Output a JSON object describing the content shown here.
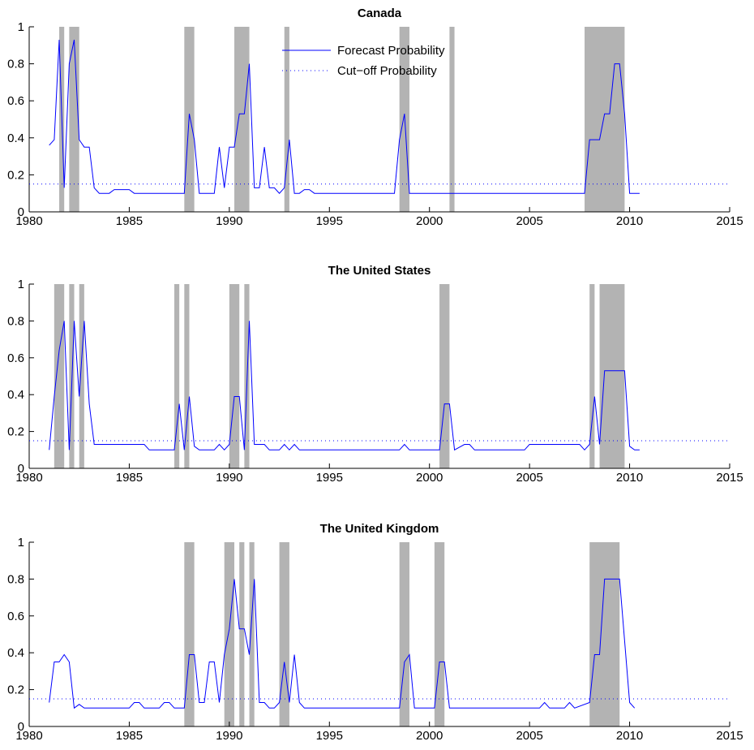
{
  "legend": {
    "forecast_label": "Forecast Probability",
    "cutoff_label": "Cut−off Probability",
    "forecast_color": "#0000ff",
    "cutoff_color": "#0000ff",
    "recession_shading_color": "#b3b3b3"
  },
  "chart_data": [
    {
      "type": "line",
      "title": "Canada",
      "xlim": [
        1980,
        2015
      ],
      "ylim": [
        0,
        1
      ],
      "x_ticks": [
        "1980",
        "1985",
        "1990",
        "1995",
        "2000",
        "2005",
        "2010",
        "2015"
      ],
      "y_ticks": [
        "0",
        "0.2",
        "0.4",
        "0.6",
        "0.8",
        "1"
      ],
      "cutoff": 0.15,
      "recessions": [
        [
          1981.5,
          1981.75
        ],
        [
          1982.0,
          1982.5
        ],
        [
          1987.75,
          1988.25
        ],
        [
          1990.25,
          1991.0
        ],
        [
          1992.75,
          1993.0
        ],
        [
          1998.5,
          1999.0
        ],
        [
          2001.0,
          2001.25
        ],
        [
          2007.75,
          2009.75
        ]
      ],
      "series": [
        {
          "values": [
            [
              1981.0,
              0.36
            ],
            [
              1981.25,
              0.39
            ],
            [
              1981.5,
              0.93
            ],
            [
              1981.75,
              0.13
            ],
            [
              1982.0,
              0.8
            ],
            [
              1982.25,
              0.93
            ],
            [
              1982.5,
              0.39
            ],
            [
              1982.75,
              0.35
            ],
            [
              1983.0,
              0.35
            ],
            [
              1983.25,
              0.13
            ],
            [
              1983.5,
              0.1
            ],
            [
              1984.0,
              0.1
            ],
            [
              1984.25,
              0.12
            ],
            [
              1985.0,
              0.12
            ],
            [
              1985.25,
              0.1
            ],
            [
              1987.75,
              0.1
            ],
            [
              1988.0,
              0.53
            ],
            [
              1988.25,
              0.39
            ],
            [
              1988.5,
              0.1
            ],
            [
              1989.25,
              0.1
            ],
            [
              1989.5,
              0.35
            ],
            [
              1989.75,
              0.13
            ],
            [
              1990.0,
              0.35
            ],
            [
              1990.25,
              0.35
            ],
            [
              1990.5,
              0.53
            ],
            [
              1990.75,
              0.53
            ],
            [
              1991.0,
              0.8
            ],
            [
              1991.25,
              0.13
            ],
            [
              1991.5,
              0.13
            ],
            [
              1991.75,
              0.35
            ],
            [
              1992.0,
              0.13
            ],
            [
              1992.25,
              0.13
            ],
            [
              1992.5,
              0.1
            ],
            [
              1992.75,
              0.13
            ],
            [
              1993.0,
              0.39
            ],
            [
              1993.25,
              0.1
            ],
            [
              1993.5,
              0.1
            ],
            [
              1993.75,
              0.12
            ],
            [
              1994.0,
              0.12
            ],
            [
              1994.25,
              0.1
            ],
            [
              1998.25,
              0.1
            ],
            [
              1998.5,
              0.39
            ],
            [
              1998.75,
              0.53
            ],
            [
              1999.0,
              0.1
            ],
            [
              2007.75,
              0.1
            ],
            [
              2008.0,
              0.39
            ],
            [
              2008.5,
              0.39
            ],
            [
              2008.75,
              0.53
            ],
            [
              2009.0,
              0.53
            ],
            [
              2009.25,
              0.8
            ],
            [
              2009.5,
              0.8
            ],
            [
              2009.75,
              0.53
            ],
            [
              2010.0,
              0.1
            ],
            [
              2010.5,
              0.1
            ]
          ]
        }
      ]
    },
    {
      "type": "line",
      "title": "The United States",
      "xlim": [
        1980,
        2015
      ],
      "ylim": [
        0,
        1
      ],
      "x_ticks": [
        "1980",
        "1985",
        "1990",
        "1995",
        "2000",
        "2005",
        "2010",
        "2015"
      ],
      "y_ticks": [
        "0",
        "0.2",
        "0.4",
        "0.6",
        "0.8",
        "1"
      ],
      "cutoff": 0.15,
      "recessions": [
        [
          1981.25,
          1981.75
        ],
        [
          1982.0,
          1982.25
        ],
        [
          1982.5,
          1982.75
        ],
        [
          1987.25,
          1987.5
        ],
        [
          1987.75,
          1988.0
        ],
        [
          1990.0,
          1990.5
        ],
        [
          1990.75,
          1991.0
        ],
        [
          2000.5,
          2001.0
        ],
        [
          2008.0,
          2008.25
        ],
        [
          2008.5,
          2009.75
        ]
      ],
      "series": [
        {
          "values": [
            [
              1981.0,
              0.1
            ],
            [
              1981.25,
              0.39
            ],
            [
              1981.5,
              0.64
            ],
            [
              1981.75,
              0.8
            ],
            [
              1982.0,
              0.1
            ],
            [
              1982.25,
              0.8
            ],
            [
              1982.5,
              0.39
            ],
            [
              1982.75,
              0.8
            ],
            [
              1983.0,
              0.35
            ],
            [
              1983.25,
              0.13
            ],
            [
              1985.75,
              0.13
            ],
            [
              1986.0,
              0.1
            ],
            [
              1987.25,
              0.1
            ],
            [
              1987.5,
              0.35
            ],
            [
              1987.75,
              0.1
            ],
            [
              1988.0,
              0.39
            ],
            [
              1988.25,
              0.12
            ],
            [
              1988.5,
              0.1
            ],
            [
              1989.25,
              0.1
            ],
            [
              1989.5,
              0.13
            ],
            [
              1989.75,
              0.1
            ],
            [
              1990.0,
              0.13
            ],
            [
              1990.25,
              0.39
            ],
            [
              1990.5,
              0.39
            ],
            [
              1990.75,
              0.1
            ],
            [
              1991.0,
              0.8
            ],
            [
              1991.25,
              0.13
            ],
            [
              1991.75,
              0.13
            ],
            [
              1992.0,
              0.1
            ],
            [
              1992.5,
              0.1
            ],
            [
              1992.75,
              0.13
            ],
            [
              1993.0,
              0.1
            ],
            [
              1993.25,
              0.13
            ],
            [
              1993.5,
              0.1
            ],
            [
              1998.5,
              0.1
            ],
            [
              1998.75,
              0.13
            ],
            [
              1999.0,
              0.1
            ],
            [
              2000.5,
              0.1
            ],
            [
              2000.75,
              0.35
            ],
            [
              2001.0,
              0.35
            ],
            [
              2001.25,
              0.1
            ],
            [
              2001.75,
              0.13
            ],
            [
              2002.0,
              0.13
            ],
            [
              2002.25,
              0.1
            ],
            [
              2004.75,
              0.1
            ],
            [
              2005.0,
              0.13
            ],
            [
              2007.5,
              0.13
            ],
            [
              2007.75,
              0.1
            ],
            [
              2008.0,
              0.13
            ],
            [
              2008.25,
              0.39
            ],
            [
              2008.5,
              0.13
            ],
            [
              2008.75,
              0.53
            ],
            [
              2009.75,
              0.53
            ],
            [
              2010.0,
              0.12
            ],
            [
              2010.25,
              0.1
            ],
            [
              2010.5,
              0.1
            ]
          ]
        }
      ]
    },
    {
      "type": "line",
      "title": "The United Kingdom",
      "xlim": [
        1980,
        2015
      ],
      "ylim": [
        0,
        1
      ],
      "x_ticks": [
        "1980",
        "1985",
        "1990",
        "1995",
        "2000",
        "2005",
        "2010",
        "2015"
      ],
      "y_ticks": [
        "0",
        "0.2",
        "0.4",
        "0.6",
        "0.8",
        "1"
      ],
      "cutoff": 0.15,
      "recessions": [
        [
          1987.75,
          1988.25
        ],
        [
          1989.75,
          1990.25
        ],
        [
          1990.5,
          1990.75
        ],
        [
          1991.0,
          1991.25
        ],
        [
          1992.5,
          1993.0
        ],
        [
          1998.5,
          1999.0
        ],
        [
          2000.25,
          2000.75
        ],
        [
          2008.0,
          2009.5
        ]
      ],
      "series": [
        {
          "values": [
            [
              1981.0,
              0.13
            ],
            [
              1981.25,
              0.35
            ],
            [
              1981.5,
              0.35
            ],
            [
              1981.75,
              0.39
            ],
            [
              1982.0,
              0.35
            ],
            [
              1982.25,
              0.1
            ],
            [
              1982.5,
              0.12
            ],
            [
              1982.75,
              0.1
            ],
            [
              1985.0,
              0.1
            ],
            [
              1985.25,
              0.13
            ],
            [
              1985.5,
              0.13
            ],
            [
              1985.75,
              0.1
            ],
            [
              1986.5,
              0.1
            ],
            [
              1986.75,
              0.13
            ],
            [
              1987.0,
              0.13
            ],
            [
              1987.25,
              0.1
            ],
            [
              1987.75,
              0.1
            ],
            [
              1988.0,
              0.39
            ],
            [
              1988.25,
              0.39
            ],
            [
              1988.5,
              0.13
            ],
            [
              1988.75,
              0.13
            ],
            [
              1989.0,
              0.35
            ],
            [
              1989.25,
              0.35
            ],
            [
              1989.5,
              0.13
            ],
            [
              1989.75,
              0.39
            ],
            [
              1990.0,
              0.53
            ],
            [
              1990.25,
              0.8
            ],
            [
              1990.5,
              0.53
            ],
            [
              1990.75,
              0.53
            ],
            [
              1991.0,
              0.39
            ],
            [
              1991.25,
              0.8
            ],
            [
              1991.5,
              0.13
            ],
            [
              1991.75,
              0.13
            ],
            [
              1992.0,
              0.1
            ],
            [
              1992.25,
              0.1
            ],
            [
              1992.5,
              0.13
            ],
            [
              1992.75,
              0.35
            ],
            [
              1993.0,
              0.13
            ],
            [
              1993.25,
              0.39
            ],
            [
              1993.5,
              0.13
            ],
            [
              1993.75,
              0.1
            ],
            [
              1998.5,
              0.1
            ],
            [
              1998.75,
              0.35
            ],
            [
              1999.0,
              0.39
            ],
            [
              1999.25,
              0.1
            ],
            [
              2000.25,
              0.1
            ],
            [
              2000.5,
              0.35
            ],
            [
              2000.75,
              0.35
            ],
            [
              2001.0,
              0.1
            ],
            [
              2005.5,
              0.1
            ],
            [
              2005.75,
              0.13
            ],
            [
              2006.0,
              0.1
            ],
            [
              2006.75,
              0.1
            ],
            [
              2007.0,
              0.13
            ],
            [
              2007.25,
              0.1
            ],
            [
              2008.0,
              0.13
            ],
            [
              2008.25,
              0.39
            ],
            [
              2008.5,
              0.39
            ],
            [
              2008.75,
              0.8
            ],
            [
              2009.5,
              0.8
            ],
            [
              2010.0,
              0.13
            ],
            [
              2010.25,
              0.1
            ]
          ]
        }
      ]
    }
  ]
}
